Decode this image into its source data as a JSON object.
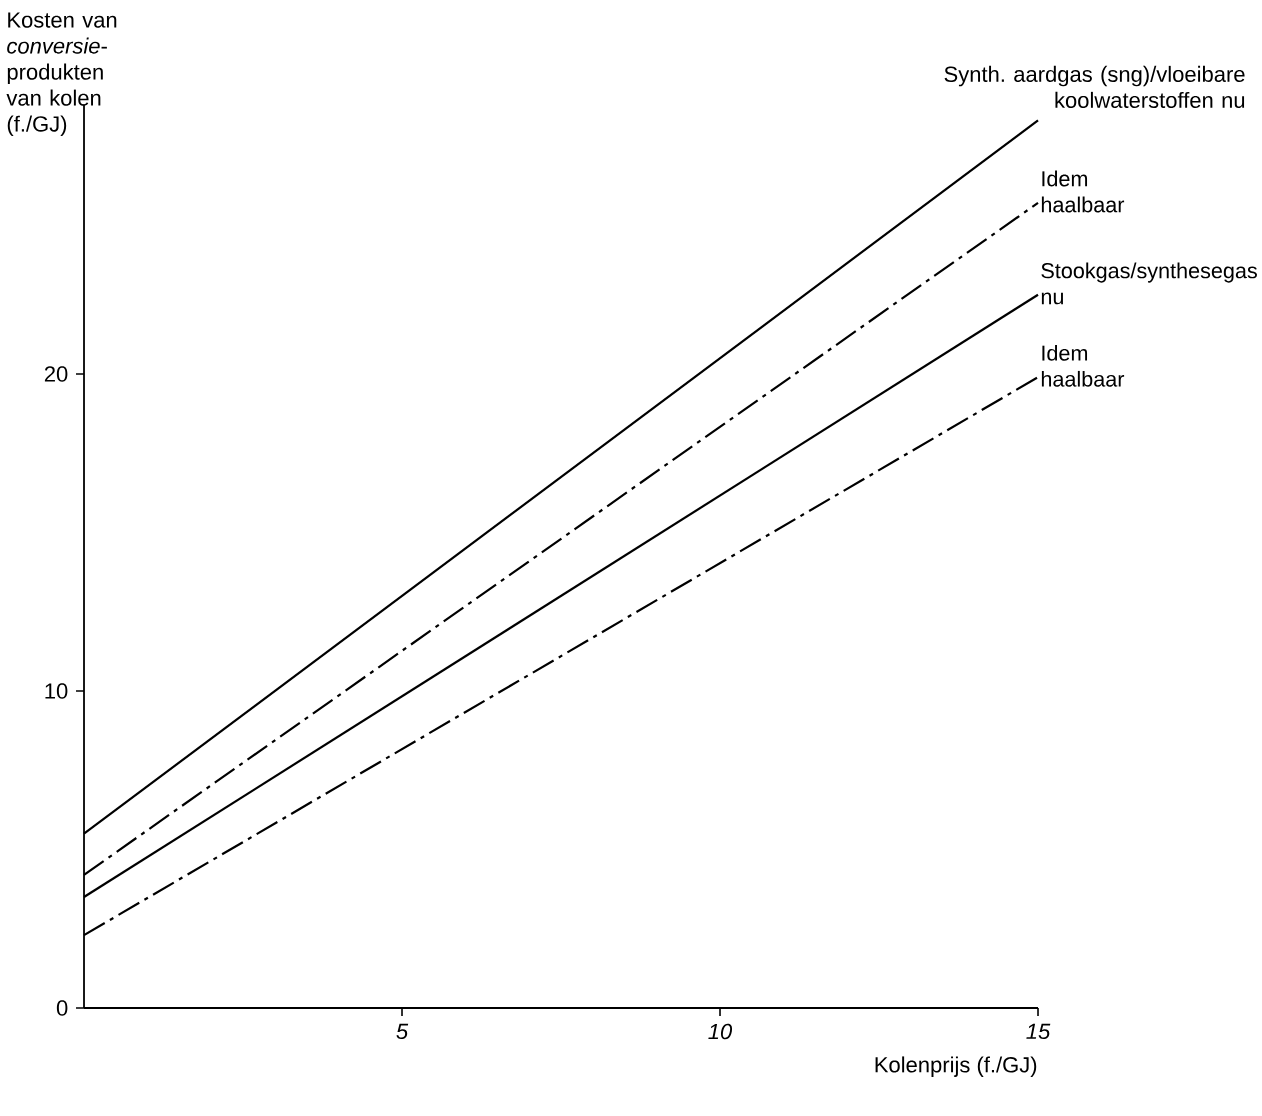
{
  "chart_data": {
    "type": "line",
    "xlabel": "Kolenprijs (f./GJ)",
    "ylabel": "Kosten van *conversie*-produkten van kolen (f./GJ)",
    "x": [
      0,
      15
    ],
    "xlim": [
      0,
      15
    ],
    "ylim": [
      0,
      28.5
    ],
    "xticks": [
      5,
      10,
      15
    ],
    "yticks": [
      0,
      10,
      20
    ],
    "grid": false,
    "marker": "none",
    "series": [
      {
        "name": "Synth. aardgas (sng)/vloeibare koolwaterstoffen nu",
        "color": "#000000",
        "line_style": "solid",
        "values": [
          5.5,
          28.0
        ]
      },
      {
        "name": "Idem haalbaar",
        "color": "#000000",
        "line_style": "dashdot",
        "values": [
          4.2,
          25.4
        ]
      },
      {
        "name": "Stookgas/synthesegas nu",
        "color": "#000000",
        "line_style": "solid",
        "values": [
          3.5,
          22.5
        ]
      },
      {
        "name": "Idem haalbaar",
        "color": "#000000",
        "line_style": "dashdot",
        "values": [
          2.3,
          19.9
        ]
      }
    ]
  }
}
